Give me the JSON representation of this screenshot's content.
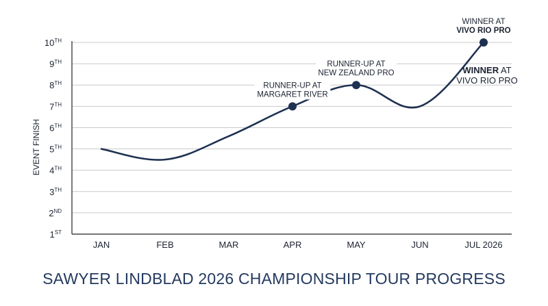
{
  "chart_data": {
    "type": "line",
    "title": "SAWYER LINDBLAD 2026 CHAMPIONSHIP TOUR PROGRESS",
    "xlabel": "",
    "ylabel": "EVENT FINISH",
    "categories": [
      "JAN",
      "FEB",
      "MAR",
      "APR",
      "MAY",
      "JUN",
      "JUL 2026"
    ],
    "x": [
      0,
      1,
      2,
      3,
      4,
      5,
      6
    ],
    "series": [
      {
        "values": [
          5,
          4.5,
          5.6,
          7,
          8,
          7,
          10
        ]
      }
    ],
    "ylim": [
      1,
      10
    ],
    "y_ticks": [
      {
        "num": "1",
        "sup": "ST"
      },
      {
        "num": "2",
        "sup": "ND"
      },
      {
        "num": "3",
        "sup": "TH"
      },
      {
        "num": "4",
        "sup": "TH"
      },
      {
        "num": "5",
        "sup": "TH"
      },
      {
        "num": "6",
        "sup": "TH"
      },
      {
        "num": "7",
        "sup": "TH"
      },
      {
        "num": "8",
        "sup": "TH"
      },
      {
        "num": "9",
        "sup": "TH"
      },
      {
        "num": "10",
        "sup": "TH"
      }
    ],
    "grid": "horizontal",
    "line_color": "#1e3151",
    "grid_color": "#c9c9c9",
    "markers": [
      {
        "x": 3,
        "y": 7,
        "lines": [
          {
            "text": "RUNNER-UP AT",
            "bold": false
          },
          {
            "text": "MARGARET RIVER",
            "bold": false
          }
        ]
      },
      {
        "x": 4,
        "y": 8,
        "lines": [
          {
            "text": "RUNNER-UP AT",
            "bold": false
          },
          {
            "text": "NEW ZEALAND PRO",
            "bold": false
          }
        ]
      },
      {
        "x": 6,
        "y": 10,
        "lines": [
          {
            "text": "WINNER AT",
            "bold": false
          },
          {
            "text": "VIVO RIO PRO",
            "bold": true
          }
        ]
      }
    ],
    "side_annotation": [
      [
        {
          "text": "WINNER",
          "bold": true
        },
        {
          "text": " AT",
          "bold": false
        }
      ],
      [
        {
          "text": "VIVO RIO PRO",
          "bold": false
        }
      ]
    ]
  }
}
